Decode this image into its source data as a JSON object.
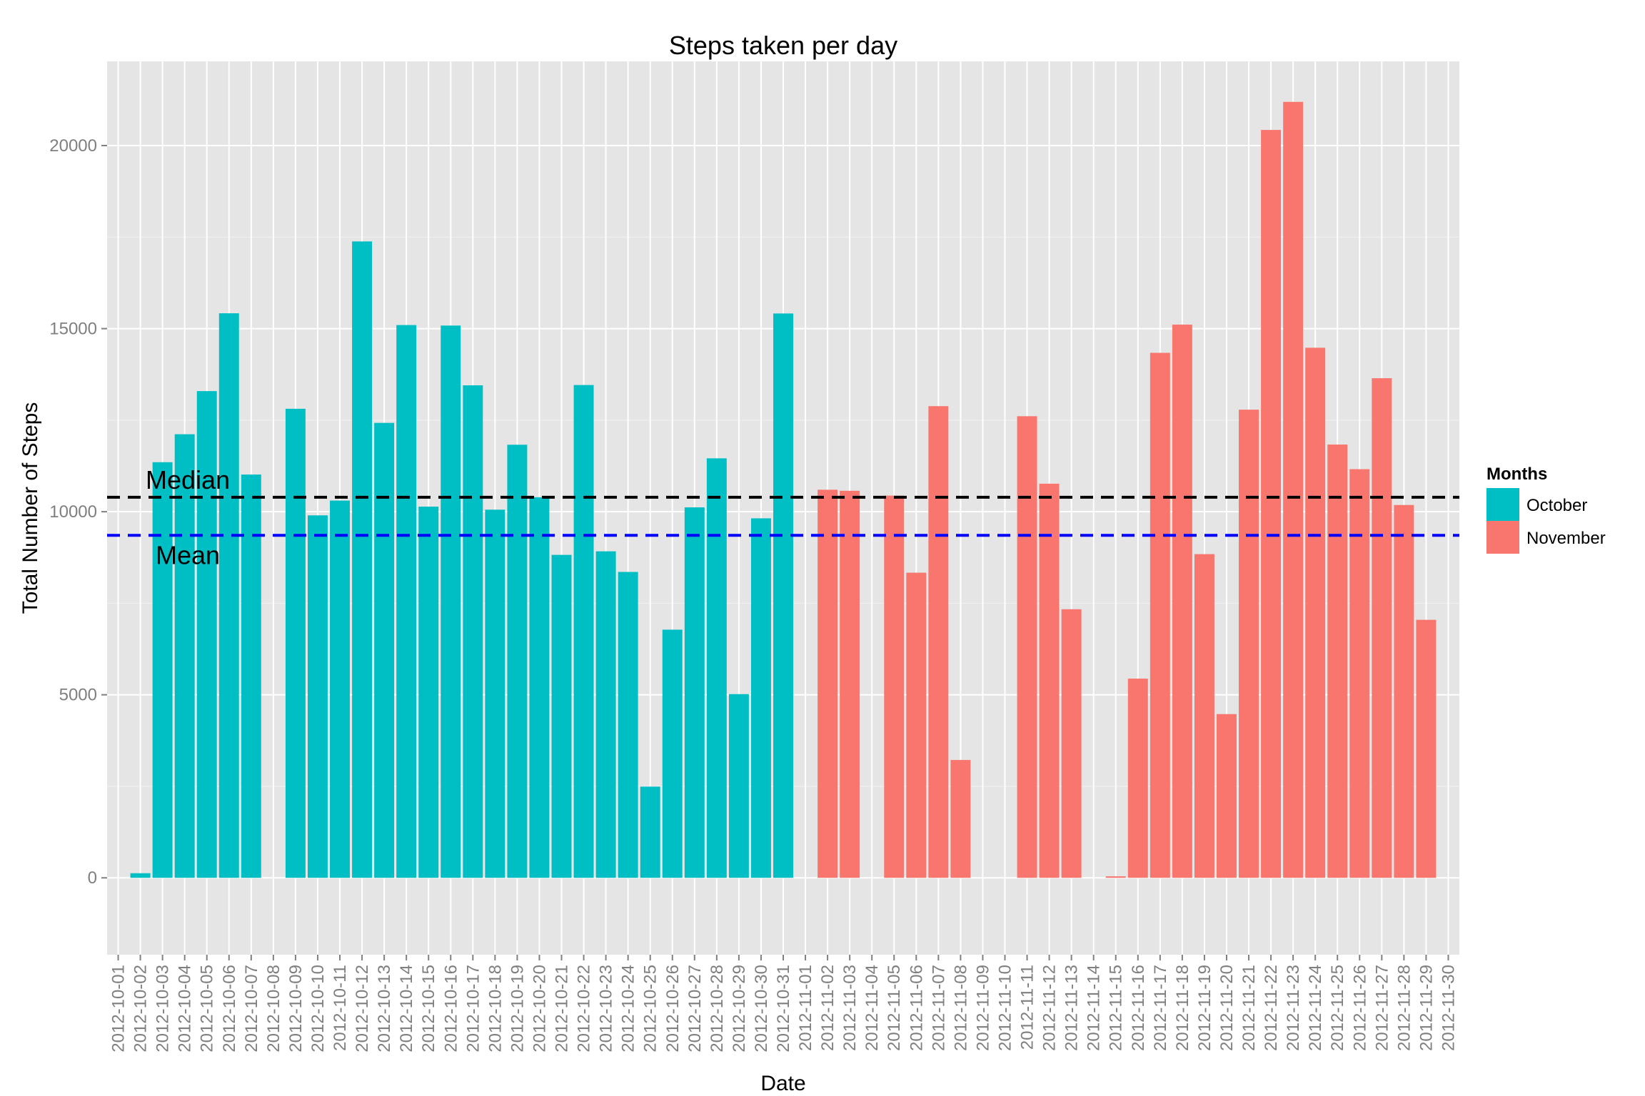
{
  "chart_data": {
    "type": "bar",
    "title": "Steps taken per day",
    "xlabel": "Date",
    "ylabel": "Total Number of Steps",
    "ylim": [
      -2100,
      22300
    ],
    "y_ticks": [
      0,
      5000,
      10000,
      15000,
      20000
    ],
    "y_tick_labels": [
      "0",
      "5000",
      "10000",
      "15000",
      "20000"
    ],
    "grid": true,
    "legend_position": "right",
    "legend_title": "Months",
    "series": [
      {
        "name": "October",
        "color": "#00BFC4"
      },
      {
        "name": "November",
        "color": "#F8766D"
      }
    ],
    "categories": [
      "2012-10-01",
      "2012-10-02",
      "2012-10-03",
      "2012-10-04",
      "2012-10-05",
      "2012-10-06",
      "2012-10-07",
      "2012-10-08",
      "2012-10-09",
      "2012-10-10",
      "2012-10-11",
      "2012-10-12",
      "2012-10-13",
      "2012-10-14",
      "2012-10-15",
      "2012-10-16",
      "2012-10-17",
      "2012-10-18",
      "2012-10-19",
      "2012-10-20",
      "2012-10-21",
      "2012-10-22",
      "2012-10-23",
      "2012-10-24",
      "2012-10-25",
      "2012-10-26",
      "2012-10-27",
      "2012-10-28",
      "2012-10-29",
      "2012-10-30",
      "2012-10-31",
      "2012-11-01",
      "2012-11-02",
      "2012-11-03",
      "2012-11-04",
      "2012-11-05",
      "2012-11-06",
      "2012-11-07",
      "2012-11-08",
      "2012-11-09",
      "2012-11-10",
      "2012-11-11",
      "2012-11-12",
      "2012-11-13",
      "2012-11-14",
      "2012-11-15",
      "2012-11-16",
      "2012-11-17",
      "2012-11-18",
      "2012-11-19",
      "2012-11-20",
      "2012-11-21",
      "2012-11-22",
      "2012-11-23",
      "2012-11-24",
      "2012-11-25",
      "2012-11-26",
      "2012-11-27",
      "2012-11-28",
      "2012-11-29",
      "2012-11-30"
    ],
    "values": [
      0,
      126,
      11352,
      12116,
      13294,
      15420,
      11015,
      0,
      12811,
      9900,
      10304,
      17382,
      12426,
      15098,
      10139,
      15084,
      13452,
      10056,
      11829,
      10395,
      8821,
      13460,
      8918,
      8355,
      2492,
      6778,
      10119,
      11458,
      5018,
      9819,
      15414,
      0,
      10600,
      10571,
      0,
      10439,
      8334,
      12883,
      3219,
      0,
      0,
      12608,
      10765,
      7336,
      0,
      41,
      5441,
      14339,
      15110,
      8841,
      4472,
      12787,
      20427,
      21194,
      14478,
      11834,
      11162,
      13646,
      10183,
      7047,
      0
    ],
    "month": [
      "October",
      "October",
      "October",
      "October",
      "October",
      "October",
      "October",
      "October",
      "October",
      "October",
      "October",
      "October",
      "October",
      "October",
      "October",
      "October",
      "October",
      "October",
      "October",
      "October",
      "October",
      "October",
      "October",
      "October",
      "October",
      "October",
      "October",
      "October",
      "October",
      "October",
      "October",
      "November",
      "November",
      "November",
      "November",
      "November",
      "November",
      "November",
      "November",
      "November",
      "November",
      "November",
      "November",
      "November",
      "November",
      "November",
      "November",
      "November",
      "November",
      "November",
      "November",
      "November",
      "November",
      "November",
      "November",
      "November",
      "November",
      "November",
      "November",
      "November",
      "November"
    ],
    "reference_lines": [
      {
        "label": "Median",
        "value": 10395,
        "color": "#000000"
      },
      {
        "label": "Mean",
        "value": 9354,
        "color": "#0000FF"
      }
    ]
  }
}
